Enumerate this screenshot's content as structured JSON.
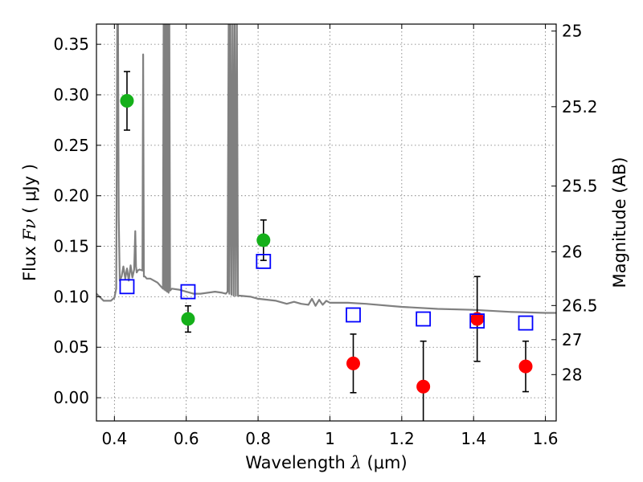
{
  "chart_data": {
    "type": "scatter",
    "xlabel_prefix": "Wavelength  ",
    "xlabel_var": "λ",
    "xlabel_unit": " (μm)",
    "ylabel_prefix": "Flux  ",
    "ylabel_var": "Fν",
    "ylabel_unit": "  ( μJy )",
    "y2label": "Magnitude (AB)",
    "xlim": [
      0.35,
      1.63
    ],
    "ylim": [
      -0.023,
      0.37
    ],
    "grid": true,
    "x_ticks": [
      0.4,
      0.6,
      0.8,
      1.0,
      1.2,
      1.4,
      1.6
    ],
    "x_tick_labels": [
      "0.4",
      "0.6",
      "0.8",
      "1",
      "1.2",
      "1.4",
      "1.6"
    ],
    "y_ticks": [
      0.0,
      0.05,
      0.1,
      0.15,
      0.2,
      0.25,
      0.3,
      0.35
    ],
    "y_tick_labels": [
      "0.00",
      "0.05",
      "0.10",
      "0.15",
      "0.20",
      "0.25",
      "0.30",
      "0.35"
    ],
    "magnitude_ticks": [
      {
        "flux": 0.3631,
        "label": "25"
      },
      {
        "flux": 0.2882,
        "label": "25.2"
      },
      {
        "flux": 0.2096,
        "label": "25.5"
      },
      {
        "flux": 0.1445,
        "label": "26"
      },
      {
        "flux": 0.0913,
        "label": "26.5"
      },
      {
        "flux": 0.0575,
        "label": "27"
      },
      {
        "flux": 0.0229,
        "label": "28"
      }
    ],
    "series": [
      {
        "name": "model spectrum",
        "type": "line",
        "color": "#808080",
        "x": [
          0.35,
          0.37,
          0.39,
          0.4,
          0.405,
          0.408,
          0.41,
          0.412,
          0.415,
          0.42,
          0.425,
          0.43,
          0.435,
          0.44,
          0.445,
          0.45,
          0.455,
          0.458,
          0.46,
          0.462,
          0.465,
          0.47,
          0.478,
          0.48,
          0.482,
          0.485,
          0.49,
          0.5,
          0.51,
          0.52,
          0.53,
          0.535,
          0.537,
          0.539,
          0.541,
          0.543,
          0.545,
          0.547,
          0.549,
          0.551,
          0.553,
          0.555,
          0.56,
          0.58,
          0.6,
          0.62,
          0.64,
          0.66,
          0.68,
          0.7,
          0.71,
          0.715,
          0.718,
          0.72,
          0.723,
          0.726,
          0.729,
          0.732,
          0.735,
          0.738,
          0.741,
          0.744,
          0.75,
          0.78,
          0.8,
          0.85,
          0.88,
          0.9,
          0.92,
          0.94,
          0.95,
          0.96,
          0.97,
          0.98,
          0.99,
          1.0,
          1.05,
          1.1,
          1.2,
          1.3,
          1.4,
          1.5,
          1.6,
          1.63
        ],
        "y": [
          0.103,
          0.096,
          0.096,
          0.099,
          0.108,
          0.37,
          0.37,
          0.18,
          0.116,
          0.12,
          0.13,
          0.118,
          0.128,
          0.116,
          0.131,
          0.119,
          0.127,
          0.165,
          0.13,
          0.124,
          0.126,
          0.127,
          0.126,
          0.34,
          0.12,
          0.12,
          0.118,
          0.118,
          0.116,
          0.114,
          0.11,
          0.108,
          0.37,
          0.107,
          0.37,
          0.106,
          0.37,
          0.105,
          0.37,
          0.104,
          0.37,
          0.106,
          0.108,
          0.107,
          0.105,
          0.103,
          0.103,
          0.104,
          0.105,
          0.104,
          0.103,
          0.105,
          0.37,
          0.103,
          0.37,
          0.102,
          0.37,
          0.101,
          0.37,
          0.101,
          0.37,
          0.101,
          0.101,
          0.1,
          0.098,
          0.096,
          0.093,
          0.095,
          0.093,
          0.092,
          0.098,
          0.091,
          0.097,
          0.092,
          0.096,
          0.094,
          0.094,
          0.093,
          0.09,
          0.088,
          0.087,
          0.085,
          0.084,
          0.084
        ]
      },
      {
        "name": "green points",
        "type": "errorbar",
        "color": "#15b01a",
        "x": [
          0.435,
          0.605,
          0.815
        ],
        "y": [
          0.294,
          0.078,
          0.156
        ],
        "yerr_low": [
          0.029,
          0.013,
          0.02
        ],
        "yerr_high": [
          0.029,
          0.013,
          0.02
        ]
      },
      {
        "name": "red points",
        "type": "errorbar",
        "color": "#ff0000",
        "x": [
          1.065,
          1.26,
          1.41,
          1.545
        ],
        "y": [
          0.034,
          0.011,
          0.078,
          0.031
        ],
        "yerr_low": [
          0.029,
          0.041,
          0.042,
          0.025
        ],
        "yerr_high": [
          0.029,
          0.045,
          0.042,
          0.025
        ]
      },
      {
        "name": "model photometry",
        "type": "open-square",
        "color": "#0000ff",
        "x": [
          0.435,
          0.605,
          0.815,
          1.065,
          1.26,
          1.41,
          1.545
        ],
        "y": [
          0.11,
          0.105,
          0.135,
          0.082,
          0.078,
          0.076,
          0.074
        ]
      }
    ]
  }
}
